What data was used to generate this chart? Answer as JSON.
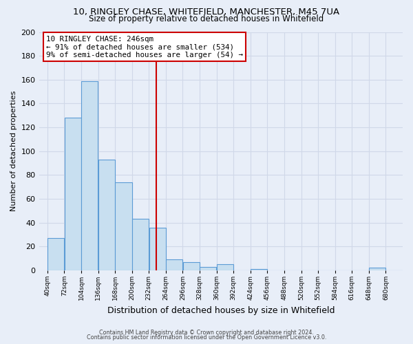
{
  "title": "10, RINGLEY CHASE, WHITEFIELD, MANCHESTER, M45 7UA",
  "subtitle": "Size of property relative to detached houses in Whitefield",
  "xlabel": "Distribution of detached houses by size in Whitefield",
  "ylabel": "Number of detached properties",
  "bin_labels": [
    "40sqm",
    "72sqm",
    "104sqm",
    "136sqm",
    "168sqm",
    "200sqm",
    "232sqm",
    "264sqm",
    "296sqm",
    "328sqm",
    "360sqm",
    "392sqm",
    "424sqm",
    "456sqm",
    "488sqm",
    "520sqm",
    "552sqm",
    "584sqm",
    "616sqm",
    "648sqm",
    "680sqm"
  ],
  "bar_values": [
    27,
    128,
    159,
    93,
    74,
    43,
    36,
    9,
    7,
    3,
    5,
    0,
    1,
    0,
    0,
    0,
    0,
    0,
    0,
    2,
    0
  ],
  "bar_color": "#c8dff0",
  "bar_edge_color": "#5b9bd5",
  "property_value": 246,
  "vline_color": "#cc0000",
  "annotation_line1": "10 RINGLEY CHASE: 246sqm",
  "annotation_line2": "← 91% of detached houses are smaller (534)",
  "annotation_line3": "9% of semi-detached houses are larger (54) →",
  "annotation_box_color": "#ffffff",
  "annotation_box_edge": "#cc0000",
  "ylim": [
    0,
    200
  ],
  "yticks": [
    0,
    20,
    40,
    60,
    80,
    100,
    120,
    140,
    160,
    180,
    200
  ],
  "footer_line1": "Contains HM Land Registry data © Crown copyright and database right 2024.",
  "footer_line2": "Contains public sector information licensed under the Open Government Licence v3.0.",
  "bg_color": "#e8eef8",
  "grid_color": "#d0d8e8",
  "title_fontsize": 9.5,
  "subtitle_fontsize": 8.5
}
